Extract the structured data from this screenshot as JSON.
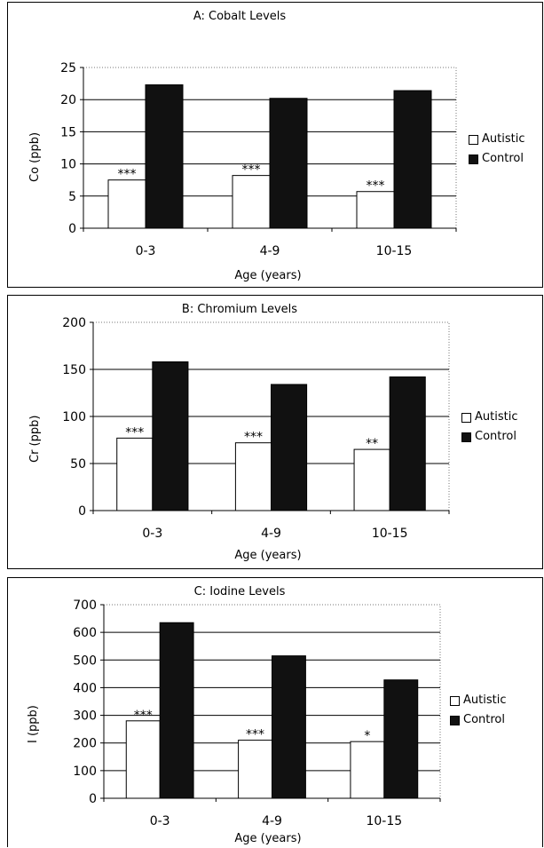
{
  "chart_data": [
    {
      "type": "bar",
      "title": "A: Cobalt Levels",
      "xlabel": "Age (years)",
      "ylabel": "Co (ppb)",
      "categories": [
        "0-3",
        "4-9",
        "10-15"
      ],
      "ylim": [
        0,
        25
      ],
      "yticks": [
        "0",
        "5",
        "10",
        "15",
        "20",
        "25"
      ],
      "series": [
        {
          "name": "Autistic",
          "values": [
            7.5,
            8.2,
            5.7
          ],
          "color": "#ffffff"
        },
        {
          "name": "Control",
          "values": [
            22.3,
            20.2,
            21.4
          ],
          "color": "#111111"
        }
      ],
      "annotations": [
        "***",
        "***",
        "***"
      ],
      "legend": "right",
      "grid": true
    },
    {
      "type": "bar",
      "title": "B: Chromium Levels",
      "xlabel": "Age (years)",
      "ylabel": "Cr (ppb)",
      "categories": [
        "0-3",
        "4-9",
        "10-15"
      ],
      "ylim": [
        0,
        200
      ],
      "yticks": [
        "0",
        "50",
        "100",
        "150",
        "200"
      ],
      "series": [
        {
          "name": "Autistic",
          "values": [
            77,
            72,
            65
          ],
          "color": "#ffffff"
        },
        {
          "name": "Control",
          "values": [
            158,
            134,
            142
          ],
          "color": "#111111"
        }
      ],
      "annotations": [
        "***",
        "***",
        "**"
      ],
      "legend": "right",
      "grid": true
    },
    {
      "type": "bar",
      "title": "C: Iodine Levels",
      "xlabel": "Age (years)",
      "ylabel": "I (ppb)",
      "categories": [
        "0-3",
        "4-9",
        "10-15"
      ],
      "ylim": [
        0,
        700
      ],
      "yticks": [
        "0",
        "100",
        "200",
        "300",
        "400",
        "500",
        "600",
        "700"
      ],
      "series": [
        {
          "name": "Autistic",
          "values": [
            280,
            210,
            205
          ],
          "color": "#ffffff"
        },
        {
          "name": "Control",
          "values": [
            635,
            515,
            428
          ],
          "color": "#111111"
        }
      ],
      "annotations": [
        "***",
        "***",
        "*"
      ],
      "legend": "right",
      "grid": true
    }
  ]
}
